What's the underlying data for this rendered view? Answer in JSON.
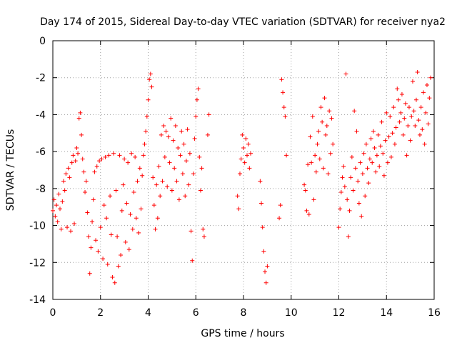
{
  "chart_data": {
    "type": "scatter",
    "title": "Day 174 of 2015, Sidereal Day-to-day VTEC variation (SDTVAR) for receiver nya2",
    "xlabel": "GPS time / hours",
    "ylabel": "SDTVAR / TECUs",
    "xlim": [
      0,
      16
    ],
    "ylim": [
      -14,
      0
    ],
    "xticks": [
      0,
      2,
      4,
      6,
      8,
      10,
      12,
      14,
      16
    ],
    "yticks": [
      0,
      -2,
      -4,
      -6,
      -8,
      -10,
      -12,
      -14
    ],
    "grid": true,
    "marker": "+",
    "color": "#ff0000",
    "series": [
      {
        "name": "nya2",
        "points": [
          [
            0.0,
            -9.2
          ],
          [
            0.05,
            -8.6
          ],
          [
            0.1,
            -9.5
          ],
          [
            0.15,
            -8.9
          ],
          [
            0.2,
            -9.8
          ],
          [
            0.25,
            -8.3
          ],
          [
            0.3,
            -9.1
          ],
          [
            0.35,
            -10.2
          ],
          [
            0.4,
            -8.7
          ],
          [
            0.45,
            -7.6
          ],
          [
            0.5,
            -8.1
          ],
          [
            0.55,
            -7.2
          ],
          [
            0.6,
            -10.1
          ],
          [
            0.65,
            -6.9
          ],
          [
            0.7,
            -7.4
          ],
          [
            0.75,
            -10.3
          ],
          [
            0.8,
            -6.6
          ],
          [
            0.85,
            -6.2
          ],
          [
            0.9,
            -9.9
          ],
          [
            0.95,
            -6.5
          ],
          [
            1.0,
            -5.8
          ],
          [
            1.05,
            -6.1
          ],
          [
            1.1,
            -4.2
          ],
          [
            1.15,
            -3.9
          ],
          [
            1.2,
            -5.1
          ],
          [
            1.25,
            -6.4
          ],
          [
            1.3,
            -7.1
          ],
          [
            1.35,
            -8.2
          ],
          [
            1.4,
            -7.6
          ],
          [
            1.45,
            -9.3
          ],
          [
            1.5,
            -10.6
          ],
          [
            1.55,
            -12.6
          ],
          [
            1.6,
            -11.2
          ],
          [
            1.65,
            -9.8
          ],
          [
            1.7,
            -8.6
          ],
          [
            1.75,
            -7.1
          ],
          [
            1.8,
            -10.8
          ],
          [
            1.85,
            -6.8
          ],
          [
            1.9,
            -11.4
          ],
          [
            1.95,
            -6.5
          ],
          [
            2.0,
            -10.1
          ],
          [
            2.05,
            -6.4
          ],
          [
            2.1,
            -11.8
          ],
          [
            2.15,
            -8.9
          ],
          [
            2.2,
            -6.3
          ],
          [
            2.25,
            -9.6
          ],
          [
            2.3,
            -12.1
          ],
          [
            2.35,
            -6.2
          ],
          [
            2.4,
            -8.4
          ],
          [
            2.45,
            -10.5
          ],
          [
            2.5,
            -12.8
          ],
          [
            2.55,
            -6.1
          ],
          [
            2.6,
            -13.1
          ],
          [
            2.65,
            -8.1
          ],
          [
            2.7,
            -10.6
          ],
          [
            2.75,
            -12.2
          ],
          [
            2.8,
            -6.2
          ],
          [
            2.85,
            -11.6
          ],
          [
            2.9,
            -9.2
          ],
          [
            2.95,
            -7.8
          ],
          [
            3.0,
            -6.4
          ],
          [
            3.05,
            -10.9
          ],
          [
            3.1,
            -8.8
          ],
          [
            3.15,
            -6.6
          ],
          [
            3.2,
            -11.3
          ],
          [
            3.25,
            -9.4
          ],
          [
            3.3,
            -6.1
          ],
          [
            3.35,
            -10.2
          ],
          [
            3.4,
            -8.2
          ],
          [
            3.45,
            -6.3
          ],
          [
            3.5,
            -9.6
          ],
          [
            3.55,
            -7.6
          ],
          [
            3.6,
            -10.4
          ],
          [
            3.65,
            -6.9
          ],
          [
            3.7,
            -9.1
          ],
          [
            3.75,
            -7.3
          ],
          [
            3.8,
            -6.2
          ],
          [
            3.85,
            -5.6
          ],
          [
            3.9,
            -4.9
          ],
          [
            3.95,
            -4.1
          ],
          [
            4.0,
            -3.2
          ],
          [
            4.05,
            -2.1
          ],
          [
            4.1,
            -1.8
          ],
          [
            4.15,
            -2.5
          ],
          [
            4.2,
            -7.4
          ],
          [
            4.25,
            -8.9
          ],
          [
            4.3,
            -10.2
          ],
          [
            4.35,
            -7.8
          ],
          [
            4.4,
            -9.6
          ],
          [
            4.45,
            -6.8
          ],
          [
            4.5,
            -8.4
          ],
          [
            4.55,
            -5.1
          ],
          [
            4.6,
            -7.6
          ],
          [
            4.65,
            -4.6
          ],
          [
            4.7,
            -6.3
          ],
          [
            4.75,
            -4.9
          ],
          [
            4.8,
            -7.9
          ],
          [
            4.85,
            -5.2
          ],
          [
            4.9,
            -6.6
          ],
          [
            4.95,
            -4.2
          ],
          [
            5.0,
            -8.1
          ],
          [
            5.05,
            -5.4
          ],
          [
            5.1,
            -6.9
          ],
          [
            5.15,
            -4.6
          ],
          [
            5.2,
            -7.6
          ],
          [
            5.25,
            -5.8
          ],
          [
            5.3,
            -8.6
          ],
          [
            5.35,
            -6.2
          ],
          [
            5.4,
            -4.9
          ],
          [
            5.45,
            -7.2
          ],
          [
            5.5,
            -5.6
          ],
          [
            5.55,
            -8.4
          ],
          [
            5.6,
            -6.5
          ],
          [
            5.65,
            -4.8
          ],
          [
            5.7,
            -7.8
          ],
          [
            5.75,
            -6.1
          ],
          [
            5.8,
            -10.3
          ],
          [
            5.85,
            -11.9
          ],
          [
            5.9,
            -7.2
          ],
          [
            5.95,
            -5.3
          ],
          [
            6.0,
            -4.1
          ],
          [
            6.05,
            -3.2
          ],
          [
            6.1,
            -2.6
          ],
          [
            6.15,
            -6.3
          ],
          [
            6.2,
            -8.1
          ],
          [
            6.25,
            -6.9
          ],
          [
            6.3,
            -10.2
          ],
          [
            6.35,
            -10.6
          ],
          [
            6.5,
            -5.1
          ],
          [
            6.55,
            -4.0
          ],
          [
            7.75,
            -8.4
          ],
          [
            7.8,
            -9.1
          ],
          [
            7.85,
            -7.2
          ],
          [
            7.9,
            -6.4
          ],
          [
            7.95,
            -5.1
          ],
          [
            8.0,
            -5.8
          ],
          [
            8.05,
            -6.6
          ],
          [
            8.1,
            -5.3
          ],
          [
            8.15,
            -6.2
          ],
          [
            8.2,
            -5.6
          ],
          [
            8.25,
            -6.9
          ],
          [
            8.3,
            -6.1
          ],
          [
            8.7,
            -7.6
          ],
          [
            8.75,
            -8.8
          ],
          [
            8.8,
            -10.1
          ],
          [
            8.85,
            -11.4
          ],
          [
            8.9,
            -12.5
          ],
          [
            8.95,
            -13.1
          ],
          [
            9.0,
            -12.2
          ],
          [
            9.5,
            -9.6
          ],
          [
            9.55,
            -8.9
          ],
          [
            9.6,
            -2.1
          ],
          [
            9.65,
            -2.8
          ],
          [
            9.7,
            -3.6
          ],
          [
            9.75,
            -4.1
          ],
          [
            9.8,
            -6.2
          ],
          [
            10.55,
            -7.8
          ],
          [
            10.6,
            -8.1
          ],
          [
            10.65,
            -9.2
          ],
          [
            10.7,
            -6.7
          ],
          [
            10.75,
            -9.4
          ],
          [
            10.8,
            -5.2
          ],
          [
            10.85,
            -6.6
          ],
          [
            10.9,
            -4.1
          ],
          [
            10.95,
            -8.6
          ],
          [
            11.0,
            -6.2
          ],
          [
            11.05,
            -7.1
          ],
          [
            11.1,
            -5.6
          ],
          [
            11.15,
            -4.9
          ],
          [
            11.2,
            -6.4
          ],
          [
            11.25,
            -3.6
          ],
          [
            11.3,
            -4.4
          ],
          [
            11.35,
            -6.9
          ],
          [
            11.4,
            -3.1
          ],
          [
            11.45,
            -5.1
          ],
          [
            11.5,
            -4.6
          ],
          [
            11.55,
            -7.2
          ],
          [
            11.6,
            -3.8
          ],
          [
            11.65,
            -6.1
          ],
          [
            11.7,
            -4.2
          ],
          [
            11.75,
            -5.6
          ],
          [
            12.0,
            -10.1
          ],
          [
            12.05,
            -9.1
          ],
          [
            12.1,
            -8.2
          ],
          [
            12.15,
            -7.4
          ],
          [
            12.2,
            -6.8
          ],
          [
            12.25,
            -7.9
          ],
          [
            12.3,
            -1.8
          ],
          [
            12.35,
            -8.6
          ],
          [
            12.4,
            -10.6
          ],
          [
            12.45,
            -9.2
          ],
          [
            12.5,
            -7.4
          ],
          [
            12.55,
            -6.3
          ],
          [
            12.6,
            -8.1
          ],
          [
            12.65,
            -3.8
          ],
          [
            12.7,
            -6.9
          ],
          [
            12.75,
            -4.9
          ],
          [
            12.8,
            -7.6
          ],
          [
            12.85,
            -8.8
          ],
          [
            12.9,
            -6.6
          ],
          [
            12.95,
            -9.5
          ],
          [
            13.0,
            -7.2
          ],
          [
            13.05,
            -6.1
          ],
          [
            13.1,
            -8.4
          ],
          [
            13.15,
            -5.6
          ],
          [
            13.2,
            -6.9
          ],
          [
            13.25,
            -7.7
          ],
          [
            13.3,
            -6.4
          ],
          [
            13.35,
            -5.3
          ],
          [
            13.4,
            -6.6
          ],
          [
            13.45,
            -4.9
          ],
          [
            13.5,
            -5.8
          ],
          [
            13.55,
            -7.1
          ],
          [
            13.6,
            -6.2
          ],
          [
            13.65,
            -5.1
          ],
          [
            13.7,
            -6.8
          ],
          [
            13.75,
            -5.7
          ],
          [
            13.8,
            -4.4
          ],
          [
            13.85,
            -6.1
          ],
          [
            13.9,
            -7.3
          ],
          [
            13.95,
            -5.4
          ],
          [
            14.0,
            -3.9
          ],
          [
            14.05,
            -6.6
          ],
          [
            14.1,
            -5.2
          ],
          [
            14.15,
            -4.1
          ],
          [
            14.2,
            -6.3
          ],
          [
            14.25,
            -5.0
          ],
          [
            14.3,
            -3.6
          ],
          [
            14.35,
            -5.6
          ],
          [
            14.4,
            -4.7
          ],
          [
            14.45,
            -2.6
          ],
          [
            14.5,
            -3.2
          ],
          [
            14.55,
            -4.4
          ],
          [
            14.6,
            -3.9
          ],
          [
            14.65,
            -2.9
          ],
          [
            14.7,
            -5.1
          ],
          [
            14.75,
            -4.2
          ],
          [
            14.8,
            -3.4
          ],
          [
            14.85,
            -6.2
          ],
          [
            14.9,
            -4.6
          ],
          [
            14.95,
            -3.6
          ],
          [
            15.0,
            -5.4
          ],
          [
            15.05,
            -4.1
          ],
          [
            15.1,
            -2.2
          ],
          [
            15.15,
            -3.8
          ],
          [
            15.2,
            -4.6
          ],
          [
            15.25,
            -3.2
          ],
          [
            15.3,
            -1.7
          ],
          [
            15.35,
            -4.3
          ],
          [
            15.4,
            -5.1
          ],
          [
            15.45,
            -3.6
          ],
          [
            15.5,
            -4.8
          ],
          [
            15.55,
            -2.8
          ],
          [
            15.6,
            -5.6
          ],
          [
            15.65,
            -3.9
          ],
          [
            15.7,
            -2.4
          ],
          [
            15.75,
            -4.5
          ],
          [
            15.8,
            -3.1
          ],
          [
            15.85,
            -2.0
          ]
        ]
      }
    ]
  }
}
